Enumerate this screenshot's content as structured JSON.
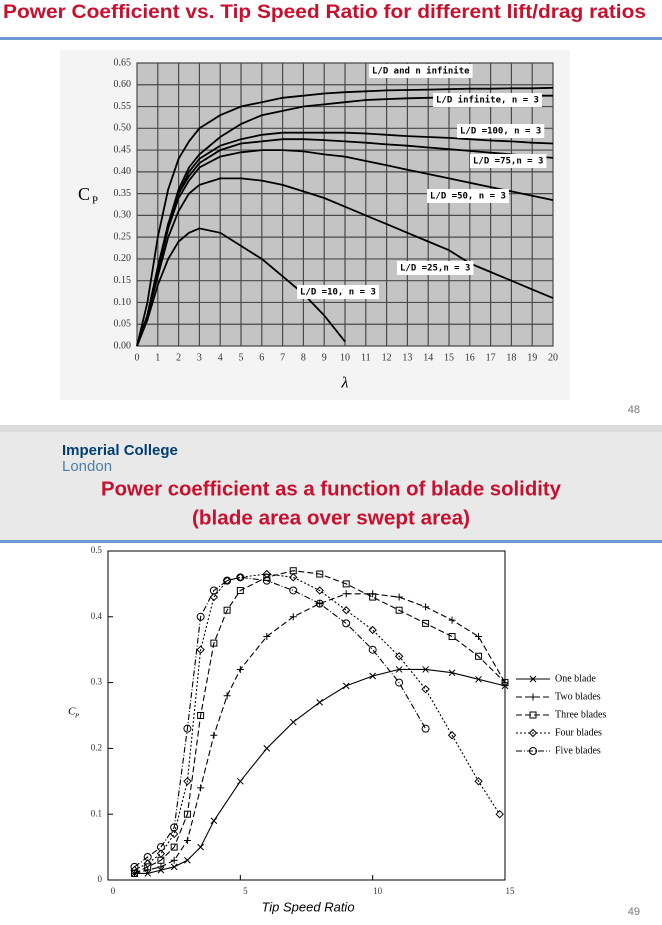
{
  "slides": [
    {
      "page_number": "48"
    },
    {
      "logo": [
        "Imperial College",
        "London"
      ],
      "page_number": "49"
    }
  ],
  "chart_data": [
    {
      "type": "line",
      "title": "Power Coefficient  vs. Tip Speed Ratio  for different lift/drag ratios",
      "xlabel": "λ",
      "ylabel": "C",
      "ylabel_subscript": "P",
      "xlim": [
        0,
        20
      ],
      "xticks": [
        0,
        1,
        2,
        3,
        4,
        5,
        6,
        7,
        8,
        9,
        10,
        11,
        12,
        13,
        14,
        15,
        16,
        17,
        18,
        19,
        20
      ],
      "ylim": [
        0,
        0.65
      ],
      "yticks": [
        {
          "value": 0,
          "label": "0.00"
        },
        {
          "value": 0.05,
          "label": "0.05"
        },
        {
          "value": 0.1,
          "label": "0.10"
        },
        {
          "value": 0.15,
          "label": "0.15"
        },
        {
          "value": 0.2,
          "label": "0.20"
        },
        {
          "value": 0.25,
          "label": "0.25"
        },
        {
          "value": 0.3,
          "label": "0.30"
        },
        {
          "value": 0.35,
          "label": "0.35"
        },
        {
          "value": 0.4,
          "label": "0.40"
        },
        {
          "value": 0.45,
          "label": "0.45"
        },
        {
          "value": 0.5,
          "label": "0.50"
        },
        {
          "value": 0.55,
          "label": "0.55"
        },
        {
          "value": 0.6,
          "label": "0.60"
        },
        {
          "value": 0.65,
          "label": "0.65"
        }
      ],
      "grid": true,
      "series_labels": "inline",
      "x": [
        0,
        0.5,
        1,
        1.5,
        2,
        2.5,
        3,
        4,
        5,
        6,
        7,
        8,
        9,
        10,
        11,
        12,
        13,
        14,
        15,
        16,
        17,
        18,
        19,
        20
      ],
      "series": [
        {
          "name": "L/D and n infinite",
          "color": "#000000",
          "values": [
            0,
            0.1,
            0.25,
            0.36,
            0.43,
            0.47,
            0.5,
            0.53,
            0.55,
            0.56,
            0.57,
            0.575,
            0.58,
            0.583,
            0.585,
            0.587,
            0.588,
            0.589,
            0.59,
            0.591,
            0.591,
            0.592,
            0.592,
            0.593
          ]
        },
        {
          "name": "L/D infinite, n = 3",
          "color": "#000000",
          "values": [
            0,
            0.07,
            0.18,
            0.28,
            0.36,
            0.41,
            0.44,
            0.48,
            0.51,
            0.53,
            0.54,
            0.55,
            0.555,
            0.56,
            0.565,
            0.567,
            0.569,
            0.57,
            0.571,
            0.572,
            0.573,
            0.574,
            0.575,
            0.575
          ]
        },
        {
          "name": "L/D =100, n = 3",
          "color": "#000000",
          "values": [
            0,
            0.07,
            0.18,
            0.28,
            0.35,
            0.4,
            0.43,
            0.46,
            0.475,
            0.485,
            0.49,
            0.49,
            0.49,
            0.49,
            0.488,
            0.485,
            0.482,
            0.48,
            0.478,
            0.475,
            0.472,
            0.47,
            0.467,
            0.465
          ]
        },
        {
          "name": "L/D =75,n = 3",
          "color": "#000000",
          "values": [
            0,
            0.07,
            0.18,
            0.28,
            0.35,
            0.39,
            0.42,
            0.45,
            0.465,
            0.47,
            0.475,
            0.475,
            0.473,
            0.47,
            0.467,
            0.463,
            0.46,
            0.456,
            0.452,
            0.448,
            0.444,
            0.44,
            0.436,
            0.432
          ]
        },
        {
          "name": "L/D =50, n = 3",
          "color": "#000000",
          "values": [
            0,
            0.07,
            0.17,
            0.27,
            0.34,
            0.38,
            0.41,
            0.435,
            0.445,
            0.45,
            0.45,
            0.447,
            0.44,
            0.435,
            0.425,
            0.415,
            0.405,
            0.395,
            0.385,
            0.375,
            0.365,
            0.355,
            0.345,
            0.335
          ]
        },
        {
          "name": "L/D =25,n = 3",
          "color": "#000000",
          "values": [
            0,
            0.07,
            0.16,
            0.25,
            0.31,
            0.35,
            0.37,
            0.385,
            0.385,
            0.38,
            0.37,
            0.355,
            0.34,
            0.32,
            0.3,
            0.28,
            0.26,
            0.24,
            0.22,
            0.19,
            0.17,
            0.15,
            0.13,
            0.11
          ]
        },
        {
          "name": "L/D =10, n = 3",
          "color": "#000000",
          "values": [
            0,
            0.06,
            0.14,
            0.2,
            0.24,
            0.26,
            0.27,
            0.26,
            0.23,
            0.2,
            0.16,
            0.12,
            0.07,
            0.01,
            null,
            null,
            null,
            null,
            null,
            null,
            null,
            null,
            null,
            null
          ]
        }
      ]
    },
    {
      "type": "line",
      "title": [
        "Power coefficient as a function of blade solidity",
        "(blade area over swept area)"
      ],
      "xlabel": "Tip Speed Ratio",
      "ylabel": "C",
      "ylabel_subscript": "P",
      "xlim": [
        0,
        15
      ],
      "xticks": [
        0,
        5,
        10,
        15
      ],
      "ylim": [
        0,
        0.5
      ],
      "yticks": [
        0,
        0.1,
        0.2,
        0.3,
        0.4,
        0.5
      ],
      "grid": false,
      "legend": "right",
      "series": [
        {
          "name": "One blade",
          "color": "#000000",
          "dash": "solid",
          "marker": "x",
          "x": [
            1,
            1.5,
            2,
            2.5,
            3,
            3.5,
            4,
            5,
            6,
            7,
            8,
            9,
            10,
            11,
            12,
            13,
            14,
            15
          ],
          "values": [
            0.01,
            0.01,
            0.015,
            0.02,
            0.03,
            0.05,
            0.09,
            0.15,
            0.2,
            0.24,
            0.27,
            0.295,
            0.31,
            0.32,
            0.32,
            0.315,
            0.305,
            0.295
          ]
        },
        {
          "name": "Two blades",
          "color": "#000000",
          "dash": "dashed",
          "marker": "plus",
          "x": [
            1,
            1.5,
            2,
            2.5,
            3,
            3.5,
            4,
            4.5,
            5,
            6,
            7,
            8,
            9,
            10,
            11,
            12,
            13,
            14,
            15
          ],
          "values": [
            0.01,
            0.015,
            0.02,
            0.03,
            0.06,
            0.14,
            0.22,
            0.28,
            0.32,
            0.37,
            0.4,
            0.42,
            0.435,
            0.435,
            0.43,
            0.415,
            0.395,
            0.37,
            0.3
          ]
        },
        {
          "name": "Three blades",
          "color": "#000000",
          "dash": "dashed",
          "marker": "square",
          "x": [
            1,
            1.5,
            2,
            2.5,
            3,
            3.5,
            4,
            4.5,
            5,
            6,
            7,
            8,
            9,
            10,
            11,
            12,
            13,
            14,
            15
          ],
          "values": [
            0.01,
            0.02,
            0.03,
            0.05,
            0.1,
            0.25,
            0.36,
            0.41,
            0.44,
            0.46,
            0.47,
            0.465,
            0.45,
            0.43,
            0.41,
            0.39,
            0.37,
            0.34,
            0.3
          ]
        },
        {
          "name": "Four blades",
          "color": "#000000",
          "dash": "dotted",
          "marker": "diamond",
          "x": [
            1,
            1.5,
            2,
            2.5,
            3,
            3.5,
            4,
            4.5,
            5,
            6,
            7,
            8,
            9,
            10,
            11,
            12,
            13,
            14,
            14.8
          ],
          "values": [
            0.015,
            0.025,
            0.04,
            0.07,
            0.15,
            0.35,
            0.43,
            0.455,
            0.46,
            0.465,
            0.46,
            0.44,
            0.41,
            0.38,
            0.34,
            0.29,
            0.22,
            0.15,
            0.1
          ]
        },
        {
          "name": "Five blades",
          "color": "#000000",
          "dash": "dashdot",
          "marker": "circle",
          "x": [
            1,
            1.5,
            2,
            2.5,
            3,
            3.5,
            4,
            4.5,
            5,
            6,
            7,
            8,
            9,
            10,
            11,
            12
          ],
          "values": [
            0.02,
            0.035,
            0.05,
            0.08,
            0.23,
            0.4,
            0.44,
            0.455,
            0.46,
            0.455,
            0.44,
            0.42,
            0.39,
            0.35,
            0.3,
            0.23
          ]
        }
      ]
    }
  ]
}
